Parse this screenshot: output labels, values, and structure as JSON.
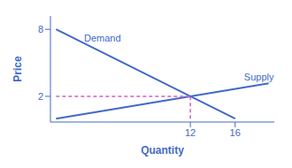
{
  "chart_data": {
    "type": "line",
    "xlabel": "Quantity",
    "ylabel": "Price",
    "xlim": [
      -0.5,
      19.5
    ],
    "ylim": [
      -0.3,
      9.2
    ],
    "xticks": [
      12,
      16
    ],
    "yticks": [
      2,
      8
    ],
    "grid": false,
    "series": [
      {
        "x": [
          0,
          16
        ],
        "values": [
          8,
          0
        ],
        "color": "#4169C8",
        "line_style": "solid"
      },
      {
        "x": [
          0,
          19
        ],
        "values": [
          0,
          3.167
        ],
        "color": "#4169C8",
        "line_style": "solid"
      },
      {
        "x": [
          0,
          12
        ],
        "values": [
          2,
          2
        ],
        "color": "#D060C0",
        "line_style": "dashed"
      },
      {
        "x": [
          12,
          12
        ],
        "values": [
          0,
          2
        ],
        "color": "#D060C0",
        "line_style": "dashed"
      }
    ],
    "annotations": [
      {
        "text": "Demand",
        "x": 2.5,
        "y": 6.7,
        "color": "#4169C8"
      },
      {
        "text": "Supply",
        "x": 16.8,
        "y": 3.2,
        "color": "#4169C8"
      }
    ]
  }
}
